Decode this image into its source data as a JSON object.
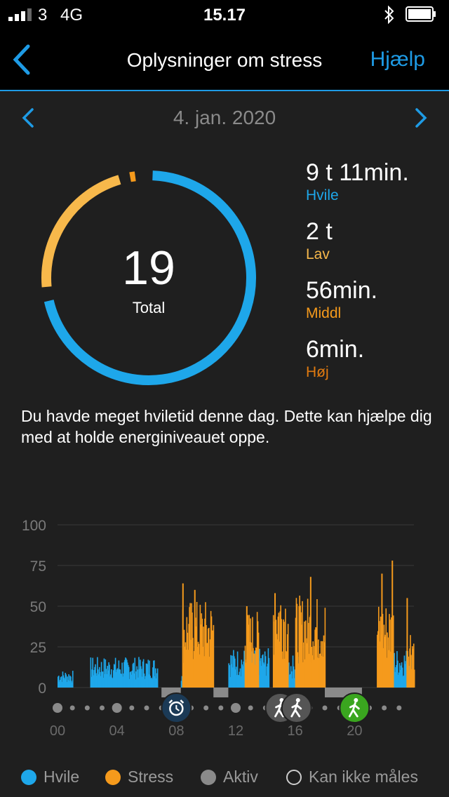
{
  "status_bar": {
    "carrier": "3",
    "network": "4G",
    "time": "15.17"
  },
  "header": {
    "title": "Oplysninger om stress",
    "help_label": "Hjælp"
  },
  "date_nav": {
    "date": "4. jan. 2020"
  },
  "summary": {
    "total_value": "19",
    "total_label": "Total"
  },
  "stats": [
    {
      "value": "9 t 11min.",
      "label": "Hvile",
      "color": "#1ea7ea"
    },
    {
      "value": "2 t",
      "label": "Lav",
      "color": "#f7b84b"
    },
    {
      "value": "56min.",
      "label": "Middl",
      "color": "#f59a1c"
    },
    {
      "value": "6min.",
      "label": "Høj",
      "color": "#e07a10"
    }
  ],
  "message": "Du havde meget hviletid denne dag. Dette kan hjælpe dig med at holde energiniveauet oppe.",
  "colors": {
    "rest": "#1ea7ea",
    "stress": "#f59a1c",
    "active": "#8a8a8a",
    "accent": "#1e9be5"
  },
  "chart_data": {
    "type": "bar",
    "y_ticks": [
      "100",
      "75",
      "50",
      "25",
      "0"
    ],
    "ylim": [
      0,
      100
    ],
    "x_ticks": [
      "00",
      "04",
      "08",
      "12",
      "16",
      "20"
    ],
    "xlim": [
      0,
      24
    ],
    "rest_segments": [
      {
        "start": 0.0,
        "end": 1.0,
        "level": 8
      },
      {
        "start": 2.2,
        "end": 6.7,
        "level": 14
      },
      {
        "start": 8.3,
        "end": 8.8,
        "level": 10
      },
      {
        "start": 11.5,
        "end": 14.2,
        "level": 18
      },
      {
        "start": 15.5,
        "end": 16.3,
        "level": 15
      },
      {
        "start": 22.6,
        "end": 23.8,
        "level": 18
      }
    ],
    "stress_segments": [
      {
        "start": 8.4,
        "end": 10.5,
        "level": 40
      },
      {
        "start": 12.6,
        "end": 13.5,
        "level": 35
      },
      {
        "start": 14.5,
        "end": 15.5,
        "level": 50
      },
      {
        "start": 16.0,
        "end": 18.0,
        "level": 42
      },
      {
        "start": 21.5,
        "end": 22.6,
        "level": 40
      },
      {
        "start": 23.5,
        "end": 24.0,
        "level": 30
      }
    ],
    "stress_peaks": [
      {
        "x": 8.4,
        "y": 64
      },
      {
        "x": 9.2,
        "y": 60
      },
      {
        "x": 12.7,
        "y": 50
      },
      {
        "x": 14.6,
        "y": 58
      },
      {
        "x": 17.0,
        "y": 68
      },
      {
        "x": 21.8,
        "y": 70
      },
      {
        "x": 22.5,
        "y": 78
      },
      {
        "x": 23.5,
        "y": 55
      }
    ],
    "active_segments": [
      {
        "start": 7.0,
        "end": 8.3,
        "level": 0
      },
      {
        "start": 10.5,
        "end": 11.5,
        "level": 0
      },
      {
        "start": 18.0,
        "end": 20.5,
        "level": 0
      }
    ],
    "events": [
      {
        "x": 8.0,
        "icon": "alarm-clock-icon",
        "color": "#1b3a56"
      },
      {
        "x": 15.0,
        "icon": "walk-icon",
        "color": "#555555"
      },
      {
        "x": 16.1,
        "icon": "walk-icon",
        "color": "#555555"
      },
      {
        "x": 20.0,
        "icon": "run-icon",
        "color": "#3aa61f"
      }
    ]
  },
  "ring_data": {
    "segments": [
      {
        "name": "Hvile",
        "start": 0.0,
        "end": 0.72,
        "color": "#1ea7ea"
      },
      {
        "name": "Lav",
        "start": 0.73,
        "end": 0.96,
        "color": "#f7b84b"
      },
      {
        "name": "Middl",
        "start": 0.965,
        "end": 0.985,
        "color": "#f59a1c"
      },
      {
        "name": "Høj",
        "start": 0.99,
        "end": 1.0,
        "color": "#e07a10"
      }
    ]
  },
  "legend": [
    {
      "label": "Hvile",
      "color": "#1ea7ea",
      "filled": true
    },
    {
      "label": "Stress",
      "color": "#f59a1c",
      "filled": true
    },
    {
      "label": "Aktiv",
      "color": "#8a8a8a",
      "filled": true
    },
    {
      "label": "Kan ikke måles",
      "color": "#cccccc",
      "filled": false
    }
  ]
}
